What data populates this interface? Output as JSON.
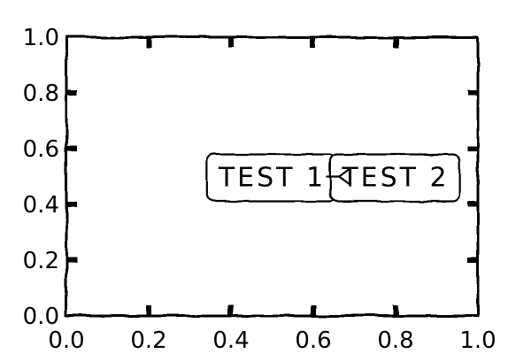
{
  "chart_data": {
    "type": "scatter",
    "style": "xkcd",
    "title": "",
    "xlabel": "",
    "ylabel": "",
    "xlim": [
      0.0,
      1.0
    ],
    "ylim": [
      0.0,
      1.0
    ],
    "grid": false,
    "x_ticks": [
      "0.0",
      "0.2",
      "0.4",
      "0.6",
      "0.8",
      "1.0"
    ],
    "y_ticks": [
      "0.0",
      "0.2",
      "0.4",
      "0.6",
      "0.8",
      "1.0"
    ],
    "series": [],
    "annotations": [
      {
        "text": "TEST 1",
        "x": 0.5,
        "y": 0.5
      },
      {
        "text": "TEST 2",
        "x": 0.8,
        "y": 0.5,
        "arrow_to": [
          0.5,
          0.5
        ]
      }
    ]
  }
}
